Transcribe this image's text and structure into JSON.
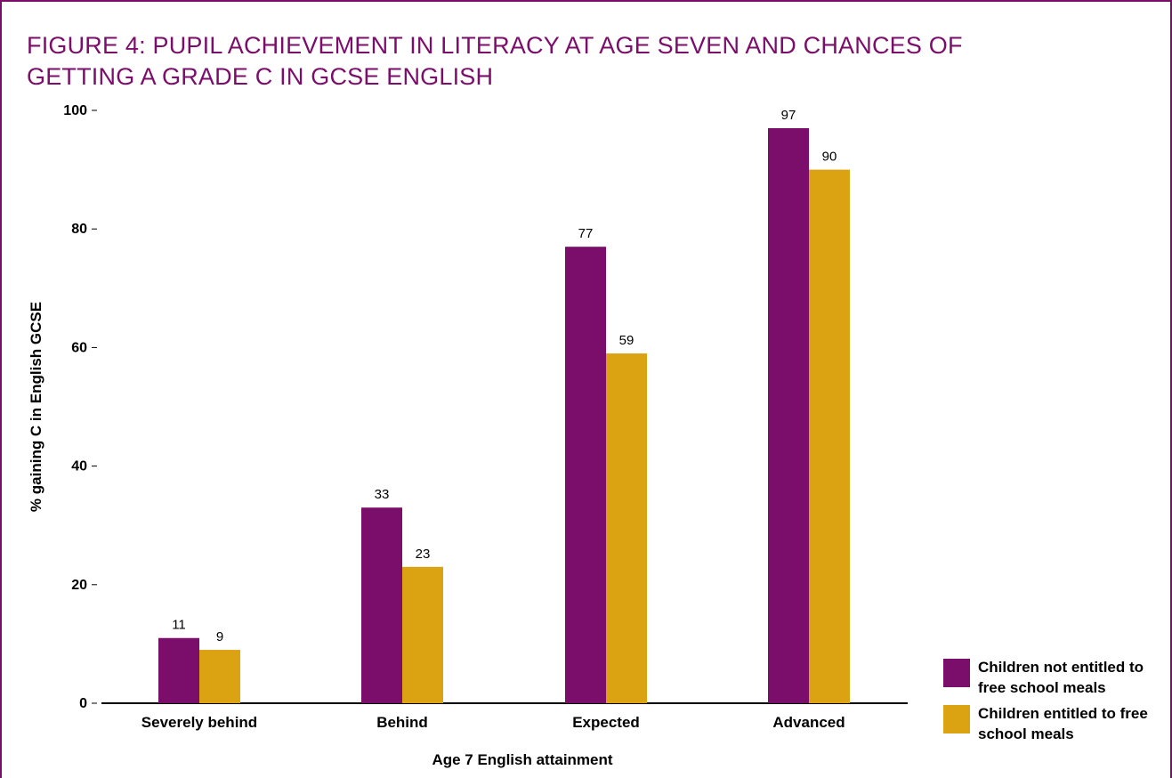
{
  "title": "FIGURE 4: PUPIL ACHIEVEMENT IN LITERACY AT AGE SEVEN AND CHANCES OF GETTING A GRADE C IN GCSE ENGLISH",
  "colors": {
    "frame": "#7b0d6b",
    "title": "#7b0d6b"
  },
  "chart_data": {
    "type": "bar",
    "categories": [
      "Severely behind",
      "Behind",
      "Expected",
      "Advanced"
    ],
    "series": [
      {
        "name": "Children not entitled to free school meals",
        "values": [
          11,
          33,
          77,
          97
        ],
        "color": "#7b0d6b"
      },
      {
        "name": "Children entitled to free school meals",
        "values": [
          9,
          23,
          59,
          90
        ],
        "color": "#dba311"
      }
    ],
    "data_labels": [
      [
        "11",
        "33",
        "77",
        "97"
      ],
      [
        "9",
        "23",
        "59",
        "90"
      ]
    ],
    "xlabel": "Age 7 English attainment",
    "ylabel": "% gaining C in English GCSE",
    "ylim": [
      0,
      100
    ],
    "yticks": [
      0,
      20,
      40,
      60,
      80,
      100
    ],
    "ytick_labels": [
      "0",
      "20",
      "40",
      "60",
      "80",
      "100"
    ],
    "grid": false,
    "legend_position": "bottom-right"
  }
}
